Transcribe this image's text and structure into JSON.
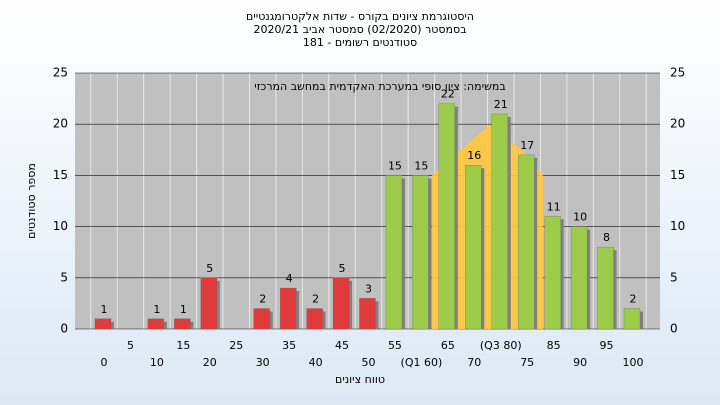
{
  "chart_data": {
    "type": "bar",
    "title": [
      "היסטוגרמת ציונים בקורס - שדות אלקטרומגנטיים",
      "בסמסטר (02/2020) סמסטר אביב 2020/21",
      "סטודנטים רשומים - 181"
    ],
    "annotation": "במשימה: ציון סופי במערכת האקדמית במחשב המרכזי",
    "x_label": "טווח ציונים",
    "y_label": "מספר סטודנטים",
    "categories": [
      "0",
      "5",
      "10",
      "15",
      "20",
      "25",
      "30",
      "35",
      "40",
      "45",
      "50",
      "55",
      "(Q1 60)",
      "65",
      "70",
      "(Q3 80)",
      "75",
      "85",
      "90",
      "95",
      "100"
    ],
    "values": [
      1,
      0,
      1,
      1,
      5,
      0,
      2,
      4,
      2,
      5,
      3,
      15,
      15,
      22,
      16,
      21,
      17,
      11,
      10,
      8,
      2
    ],
    "colors": [
      "#e03a3a",
      "#e03a3a",
      "#e03a3a",
      "#e03a3a",
      "#e03a3a",
      "#e03a3a",
      "#e03a3a",
      "#e03a3a",
      "#e03a3a",
      "#e03a3a",
      "#e03a3a",
      "#9ccc4a",
      "#9ccc4a",
      "#9ccc4a",
      "#9ccc4a",
      "#9ccc4a",
      "#9ccc4a",
      "#9ccc4a",
      "#9ccc4a",
      "#9ccc4a",
      "#9ccc4a"
    ],
    "curve": {
      "x": [
        62,
        73,
        80,
        83
      ],
      "values": [
        15,
        20,
        17,
        15
      ],
      "color": "#ffc93c"
    },
    "ylim": [
      0,
      25
    ],
    "yticks": [
      0,
      5,
      10,
      15,
      20,
      25
    ],
    "grid": true
  }
}
